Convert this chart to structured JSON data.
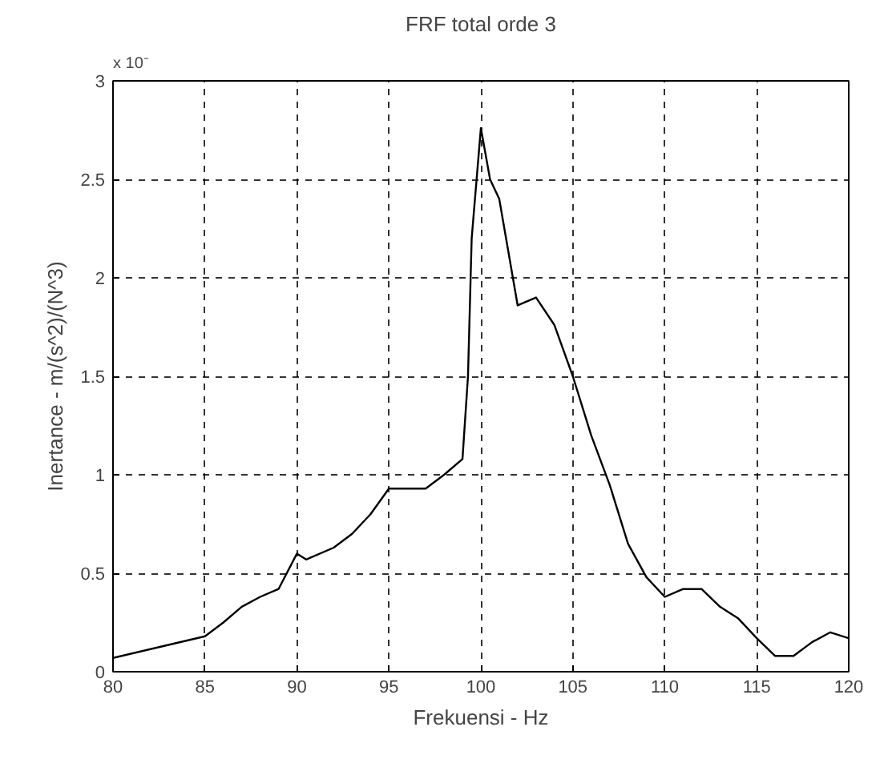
{
  "chart_data": {
    "type": "line",
    "title": "FRF total orde 3",
    "xlabel": "Frekuensi - Hz",
    "ylabel": "Inertance - m/(s^2)/(N^3)",
    "annotations": [
      "x 10⁻"
    ],
    "x": [
      80,
      85,
      86,
      87,
      88,
      89,
      90,
      90.5,
      92,
      93,
      94,
      95,
      97,
      98,
      99,
      99.3,
      99.5,
      100,
      100.5,
      101,
      102,
      103,
      104,
      105,
      106,
      107,
      108,
      109,
      110,
      111,
      112,
      113,
      114,
      115,
      116,
      117,
      118,
      119,
      120
    ],
    "series": [
      {
        "color": "#000000",
        "values": [
          0.07,
          0.18,
          0.25,
          0.33,
          0.38,
          0.42,
          0.6,
          0.57,
          0.63,
          0.7,
          0.8,
          0.93,
          0.93,
          1.0,
          1.08,
          1.5,
          2.2,
          2.76,
          2.5,
          2.4,
          1.86,
          1.9,
          1.76,
          1.5,
          1.2,
          0.95,
          0.65,
          0.48,
          0.38,
          0.42,
          0.42,
          0.33,
          0.27,
          0.17,
          0.08,
          0.08,
          0.15,
          0.2,
          0.17
        ]
      }
    ],
    "xlim": [
      80,
      120
    ],
    "xticks": [
      80,
      85,
      90,
      95,
      100,
      105,
      110,
      115,
      120
    ],
    "ylim": [
      0,
      3
    ],
    "yticks": [
      0,
      0.5,
      1,
      1.5,
      2,
      2.5,
      3
    ],
    "grid": true,
    "marker": "none",
    "line_style": "solid"
  }
}
